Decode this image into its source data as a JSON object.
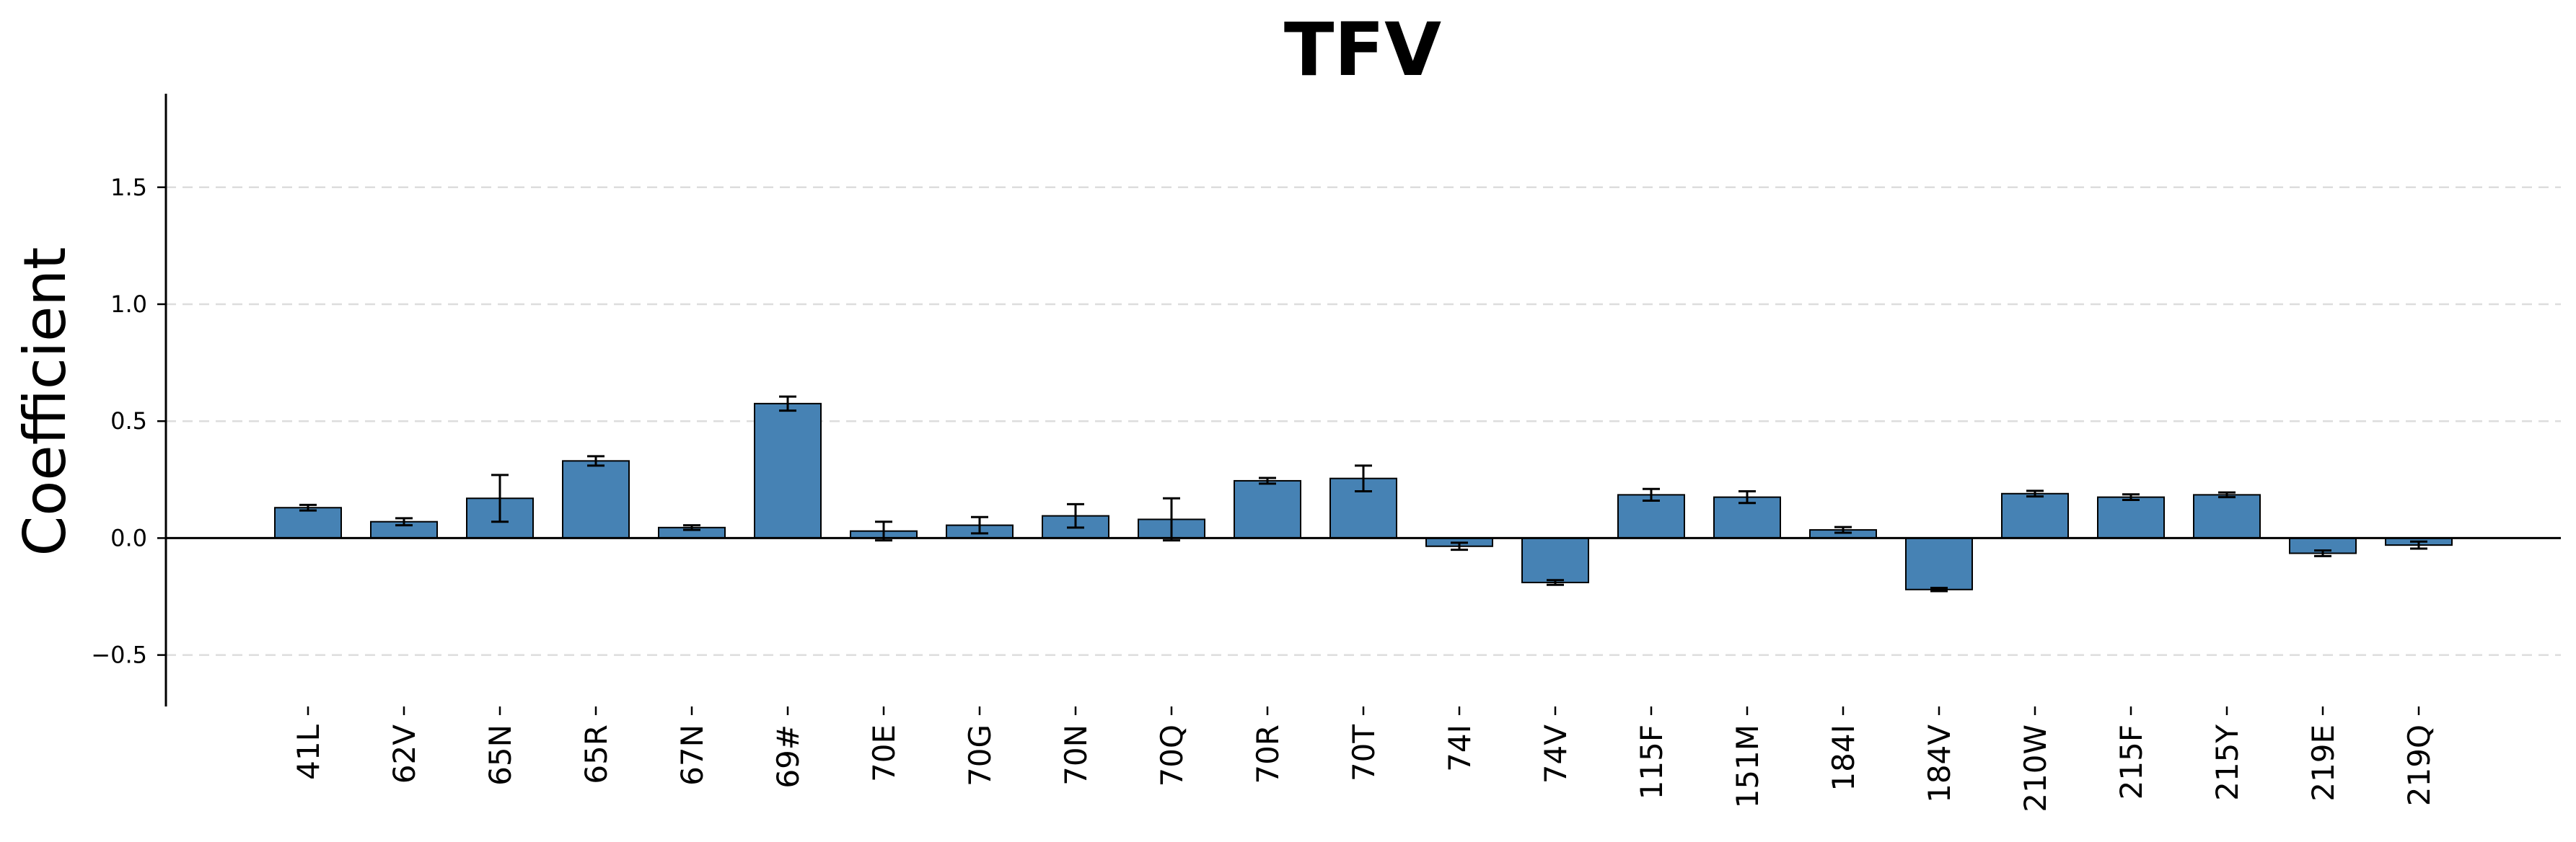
{
  "chart_data": {
    "type": "bar",
    "title": "TFV",
    "xlabel": "",
    "ylabel": "Coefficient",
    "ylim": [
      -0.72,
      1.9
    ],
    "yticks": [
      -0.5,
      0.0,
      0.5,
      1.0,
      1.5
    ],
    "ytick_labels": [
      "−0.5",
      "0.0",
      "0.5",
      "1.0",
      "1.5"
    ],
    "grid": "horizontal-dashed",
    "legend": "none",
    "categories": [
      "41L",
      "62V",
      "65N",
      "65R",
      "67N",
      "69#",
      "70E",
      "70G",
      "70N",
      "70Q",
      "70R",
      "70T",
      "74I",
      "74V",
      "115F",
      "151M",
      "184I",
      "184V",
      "210W",
      "215F",
      "215Y",
      "219E",
      "219Q"
    ],
    "values": [
      0.13,
      0.07,
      0.17,
      0.33,
      0.045,
      0.575,
      0.03,
      0.055,
      0.095,
      0.08,
      0.245,
      0.255,
      -0.035,
      -0.19,
      0.185,
      0.175,
      0.035,
      -0.22,
      0.19,
      0.175,
      0.185,
      -0.065,
      -0.03
    ],
    "errors": [
      0.012,
      0.015,
      0.1,
      0.02,
      0.01,
      0.03,
      0.04,
      0.035,
      0.05,
      0.09,
      0.012,
      0.055,
      0.015,
      0.01,
      0.025,
      0.025,
      0.012,
      0.007,
      0.012,
      0.012,
      0.01,
      0.012,
      0.015
    ],
    "colors": {
      "bar_fill": "#4682b4",
      "bar_edge": "#000000",
      "error_bar": "#000000",
      "grid": "#dddddd",
      "axis": "#000000",
      "zero_line": "#000000"
    }
  }
}
